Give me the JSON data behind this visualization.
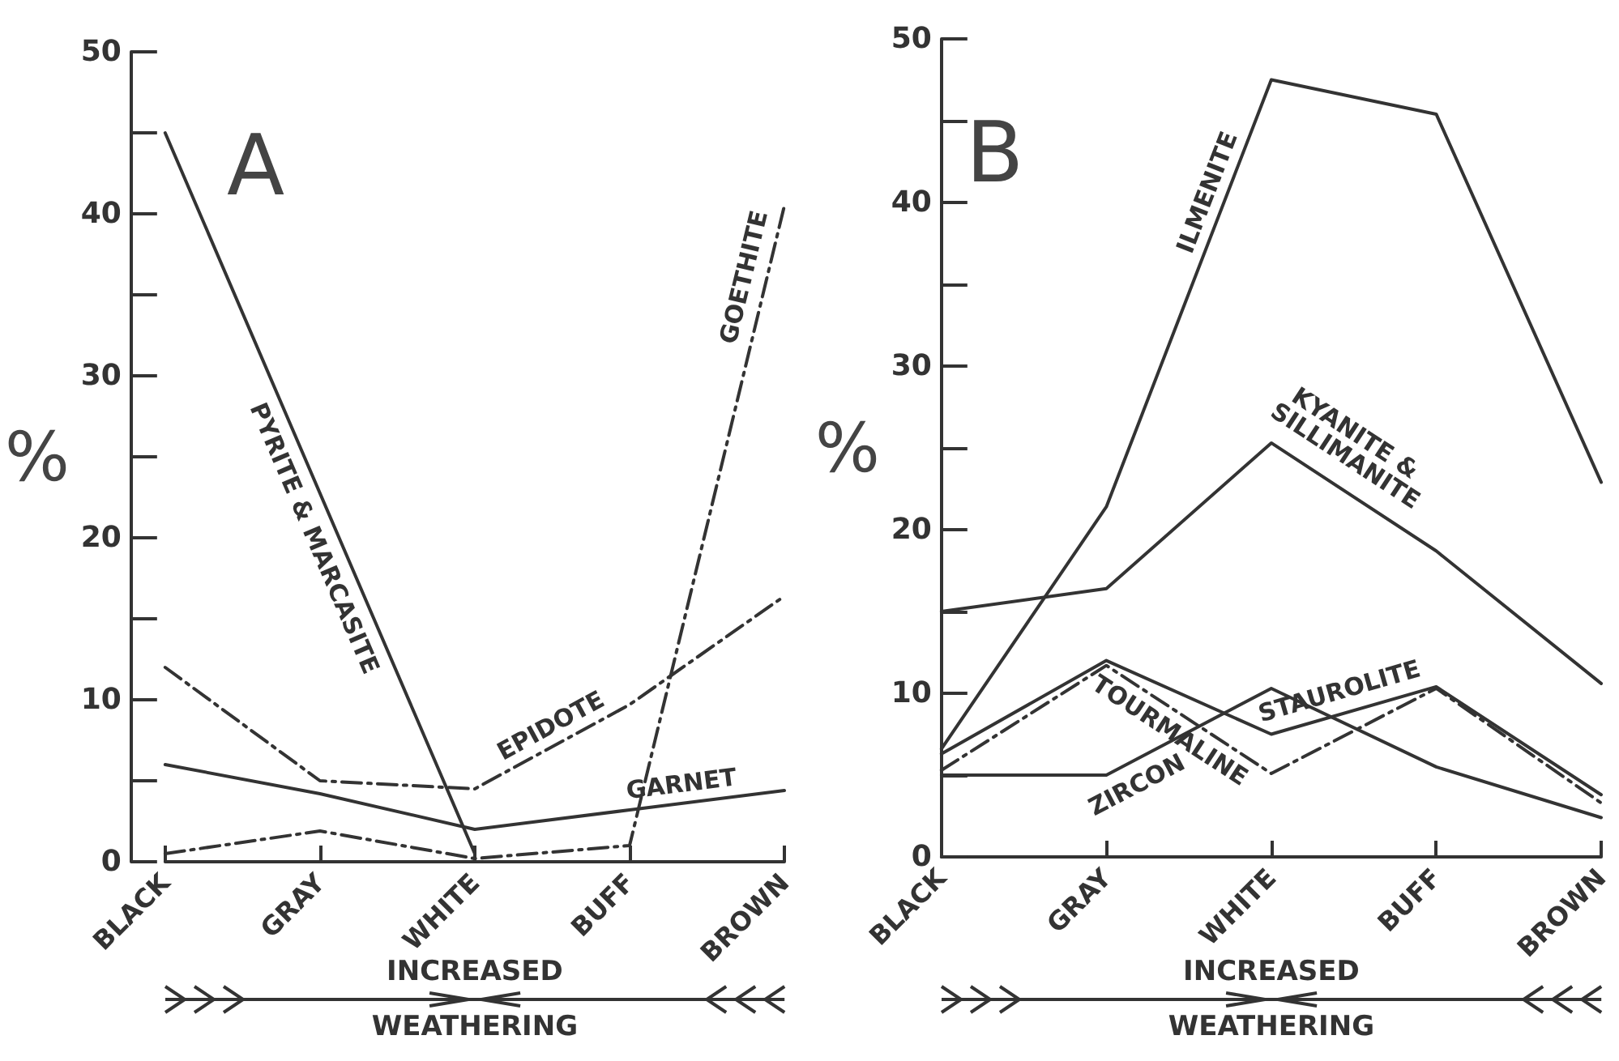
{
  "chart_data": [
    {
      "type": "line",
      "title": "A",
      "ylabel": "%",
      "categories": [
        "BLACK",
        "GRAY",
        "WHITE",
        "BUFF",
        "BROWN"
      ],
      "ylim": [
        0,
        50
      ],
      "yticks": [
        0,
        {
          "value": 5,
          "label": null
        },
        10,
        {
          "value": 15,
          "label": null
        },
        20,
        {
          "value": 25,
          "label": null
        },
        30,
        {
          "value": 35,
          "label": null
        },
        40,
        {
          "value": 45,
          "label": null
        },
        50
      ],
      "grid": false,
      "legend": false,
      "marker": "none",
      "annotations": [
        "INCREASED WEATHERING"
      ],
      "series": [
        {
          "name": "PYRITE & MARCASITE",
          "color": "#333333",
          "line_style": "solid",
          "values": [
            45,
            null,
            0.5,
            null,
            null
          ]
        },
        {
          "name": "EPIDOTE",
          "color": "#333333",
          "line_style": "dashed",
          "values": [
            12,
            5,
            4.5,
            9.7,
            16.4
          ]
        },
        {
          "name": "GARNET",
          "color": "#333333",
          "line_style": "solid",
          "values": [
            6,
            4.2,
            2,
            3.2,
            4.4
          ]
        },
        {
          "name": "GOETHITE",
          "color": "#333333",
          "line_style": "dashed",
          "values": [
            0.5,
            1.9,
            0.2,
            1,
            40.5
          ]
        }
      ]
    },
    {
      "type": "line",
      "title": "B",
      "ylabel": "%",
      "categories": [
        "BLACK",
        "GRAY",
        "WHITE",
        "BUFF",
        "BROWN"
      ],
      "ylim": [
        0,
        50
      ],
      "yticks": [
        0,
        {
          "value": 5,
          "label": null
        },
        10,
        {
          "value": 15,
          "label": null
        },
        20,
        {
          "value": 25,
          "label": null
        },
        30,
        {
          "value": 35,
          "label": null
        },
        40,
        {
          "value": 45,
          "label": null
        },
        50
      ],
      "grid": false,
      "legend": false,
      "marker": "none",
      "annotations": [
        "INCREASED WEATHERING"
      ],
      "series": [
        {
          "name": "ILMENITE",
          "color": "#333333",
          "line_style": "solid",
          "values": [
            6.6,
            21.4,
            47.5,
            45.4,
            22.9
          ]
        },
        {
          "name": "KYANITE & SILLIMANITE",
          "color": "#333333",
          "line_style": "solid",
          "values": [
            15,
            16.4,
            25.3,
            18.7,
            10.6
          ]
        },
        {
          "name": "TOURMALINE",
          "color": "#333333",
          "line_style": "dashed",
          "values": [
            5.3,
            11.7,
            5.1,
            10.3,
            3.3
          ]
        },
        {
          "name": "STAUROLITE",
          "color": "#333333",
          "line_style": "solid",
          "values": [
            6.3,
            12,
            7.5,
            10.4,
            3.8
          ]
        },
        {
          "name": "ZIRCON",
          "color": "#333333",
          "line_style": "solid",
          "values": [
            5,
            5,
            10.3,
            5.5,
            2.4
          ]
        }
      ]
    }
  ]
}
